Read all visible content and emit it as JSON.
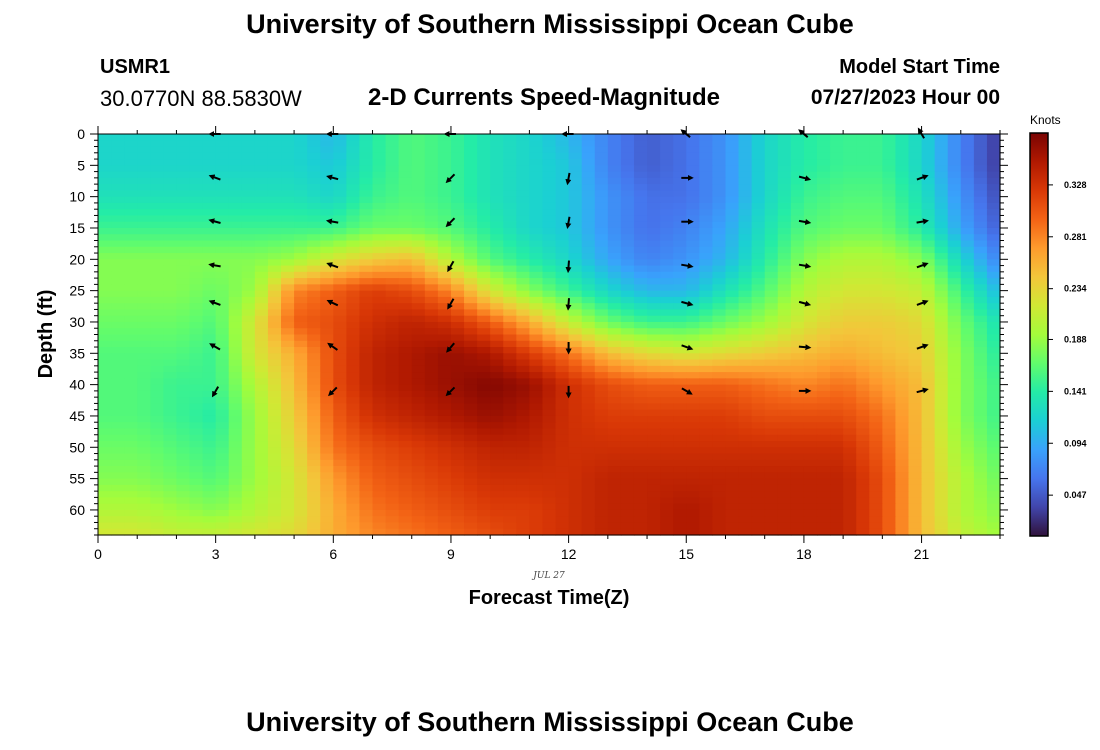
{
  "header": {
    "title": "University of Southern Mississippi Ocean Cube",
    "station_id": "USMR1",
    "station_coords": "30.0770N  88.5830W",
    "chart_title": "2-D Currents Speed-Magnitude",
    "model_start_label": "Model Start Time",
    "model_start_value": "07/27/2023 Hour 00"
  },
  "footer": {
    "title": "University of Southern Mississippi Ocean Cube"
  },
  "chart_data": {
    "type": "heatmap",
    "title": "2-D Currents Speed-Magnitude",
    "xlabel": "Forecast Time(Z)",
    "ylabel": "Depth (ft)",
    "date_label": "JUL 27",
    "x_range": [
      0,
      23
    ],
    "y_range": [
      0,
      64
    ],
    "x_ticks": [
      0,
      3,
      6,
      9,
      12,
      15,
      18,
      21
    ],
    "y_ticks": [
      0,
      5,
      10,
      15,
      20,
      25,
      30,
      35,
      40,
      45,
      50,
      55,
      60
    ],
    "colorbar": {
      "units": "Knots",
      "ticks": [
        0.047,
        0.094,
        0.141,
        0.188,
        0.234,
        0.281,
        0.328
      ],
      "range": [
        0.01,
        0.375
      ],
      "colors": [
        "#30123b",
        "#4145ab",
        "#4675ed",
        "#39a2fc",
        "#1bcfd4",
        "#24eca6",
        "#61fc6c",
        "#a4fc3b",
        "#d1e834",
        "#f3c63a",
        "#fe9b2d",
        "#f36315",
        "#d93806",
        "#b11901",
        "#7a0403"
      ]
    },
    "depths": [
      0,
      5,
      10,
      15,
      20,
      25,
      30,
      35,
      40,
      45,
      50,
      55,
      60,
      64
    ],
    "hours": [
      0,
      1,
      2,
      3,
      4,
      5,
      6,
      7,
      8,
      9,
      10,
      11,
      12,
      13,
      14,
      15,
      16,
      17,
      18,
      19,
      20,
      21,
      22,
      23
    ],
    "speed_knots": [
      [
        0.12,
        0.12,
        0.12,
        0.12,
        0.12,
        0.12,
        0.1,
        0.14,
        0.16,
        0.15,
        0.13,
        0.12,
        0.1,
        0.07,
        0.05,
        0.06,
        0.08,
        0.12,
        0.14,
        0.15,
        0.15,
        0.12,
        0.07,
        0.03
      ],
      [
        0.12,
        0.12,
        0.12,
        0.12,
        0.12,
        0.12,
        0.11,
        0.14,
        0.16,
        0.15,
        0.13,
        0.12,
        0.11,
        0.07,
        0.05,
        0.06,
        0.08,
        0.12,
        0.14,
        0.15,
        0.15,
        0.12,
        0.07,
        0.03
      ],
      [
        0.13,
        0.13,
        0.13,
        0.13,
        0.13,
        0.13,
        0.12,
        0.15,
        0.16,
        0.15,
        0.13,
        0.12,
        0.11,
        0.08,
        0.06,
        0.06,
        0.08,
        0.12,
        0.15,
        0.16,
        0.16,
        0.13,
        0.08,
        0.04
      ],
      [
        0.15,
        0.15,
        0.15,
        0.15,
        0.15,
        0.15,
        0.15,
        0.17,
        0.17,
        0.16,
        0.14,
        0.12,
        0.11,
        0.08,
        0.06,
        0.07,
        0.09,
        0.13,
        0.16,
        0.17,
        0.17,
        0.14,
        0.09,
        0.05
      ],
      [
        0.18,
        0.18,
        0.18,
        0.18,
        0.18,
        0.19,
        0.22,
        0.24,
        0.25,
        0.2,
        0.16,
        0.14,
        0.12,
        0.09,
        0.07,
        0.08,
        0.1,
        0.14,
        0.18,
        0.2,
        0.2,
        0.18,
        0.12,
        0.07
      ],
      [
        0.18,
        0.18,
        0.18,
        0.17,
        0.19,
        0.28,
        0.3,
        0.32,
        0.31,
        0.28,
        0.22,
        0.18,
        0.15,
        0.12,
        0.1,
        0.1,
        0.13,
        0.16,
        0.2,
        0.22,
        0.22,
        0.21,
        0.15,
        0.1
      ],
      [
        0.17,
        0.17,
        0.17,
        0.16,
        0.22,
        0.3,
        0.31,
        0.33,
        0.34,
        0.33,
        0.3,
        0.26,
        0.21,
        0.17,
        0.15,
        0.15,
        0.17,
        0.19,
        0.22,
        0.24,
        0.24,
        0.23,
        0.17,
        0.13
      ],
      [
        0.16,
        0.16,
        0.16,
        0.15,
        0.22,
        0.26,
        0.31,
        0.34,
        0.35,
        0.36,
        0.35,
        0.32,
        0.29,
        0.25,
        0.23,
        0.22,
        0.23,
        0.24,
        0.25,
        0.26,
        0.25,
        0.24,
        0.18,
        0.14
      ],
      [
        0.16,
        0.16,
        0.15,
        0.15,
        0.2,
        0.25,
        0.31,
        0.34,
        0.35,
        0.36,
        0.37,
        0.36,
        0.33,
        0.31,
        0.3,
        0.3,
        0.3,
        0.29,
        0.28,
        0.29,
        0.27,
        0.25,
        0.18,
        0.15
      ],
      [
        0.16,
        0.16,
        0.15,
        0.14,
        0.19,
        0.24,
        0.3,
        0.33,
        0.34,
        0.35,
        0.36,
        0.35,
        0.33,
        0.32,
        0.32,
        0.32,
        0.32,
        0.31,
        0.31,
        0.31,
        0.29,
        0.25,
        0.18,
        0.15
      ],
      [
        0.17,
        0.17,
        0.16,
        0.15,
        0.19,
        0.23,
        0.29,
        0.31,
        0.32,
        0.33,
        0.34,
        0.34,
        0.33,
        0.33,
        0.33,
        0.33,
        0.33,
        0.33,
        0.33,
        0.33,
        0.3,
        0.25,
        0.19,
        0.16
      ],
      [
        0.18,
        0.18,
        0.17,
        0.16,
        0.19,
        0.22,
        0.27,
        0.3,
        0.31,
        0.32,
        0.33,
        0.33,
        0.33,
        0.34,
        0.34,
        0.34,
        0.34,
        0.34,
        0.34,
        0.34,
        0.31,
        0.25,
        0.2,
        0.17
      ],
      [
        0.2,
        0.2,
        0.19,
        0.18,
        0.2,
        0.22,
        0.26,
        0.29,
        0.3,
        0.31,
        0.32,
        0.32,
        0.33,
        0.34,
        0.34,
        0.35,
        0.34,
        0.34,
        0.34,
        0.34,
        0.31,
        0.25,
        0.2,
        0.18
      ],
      [
        0.22,
        0.22,
        0.21,
        0.21,
        0.22,
        0.23,
        0.26,
        0.28,
        0.29,
        0.3,
        0.31,
        0.32,
        0.33,
        0.34,
        0.34,
        0.35,
        0.34,
        0.34,
        0.34,
        0.34,
        0.31,
        0.25,
        0.21,
        0.19
      ]
    ],
    "vector_hours": [
      3,
      6,
      9,
      12,
      15,
      18,
      21
    ],
    "vector_depths": [
      0,
      7,
      14,
      21,
      27,
      34,
      41
    ],
    "vector_directions_deg": [
      [
        180,
        180,
        180,
        180,
        220,
        220,
        240
      ],
      [
        200,
        195,
        135,
        100,
        0,
        15,
        340
      ],
      [
        195,
        190,
        135,
        100,
        0,
        10,
        350
      ],
      [
        190,
        200,
        120,
        95,
        10,
        10,
        340
      ],
      [
        200,
        205,
        120,
        95,
        15,
        15,
        340
      ],
      [
        210,
        215,
        130,
        90,
        20,
        5,
        340
      ],
      [
        120,
        135,
        135,
        90,
        30,
        0,
        345
      ]
    ]
  }
}
